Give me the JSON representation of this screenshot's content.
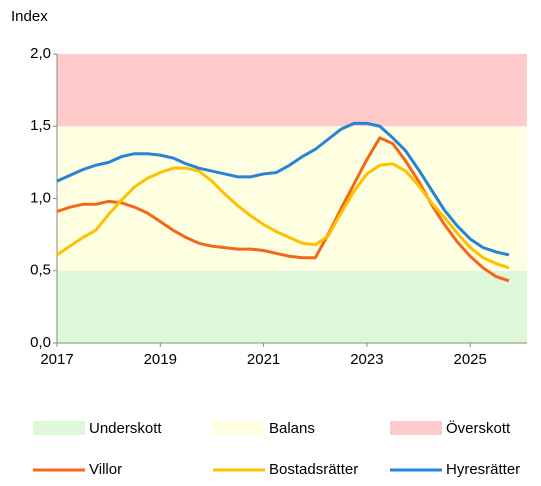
{
  "chart_data": {
    "type": "line",
    "y_label": "Index",
    "x": [
      2017,
      2017.25,
      2017.5,
      2017.75,
      2018,
      2018.25,
      2018.5,
      2018.75,
      2019,
      2019.25,
      2019.5,
      2019.75,
      2020,
      2020.25,
      2020.5,
      2020.75,
      2021,
      2021.25,
      2021.5,
      2021.75,
      2022,
      2022.25,
      2022.5,
      2022.75,
      2023,
      2023.25,
      2023.5,
      2023.75,
      2024,
      2024.25,
      2024.5,
      2024.75,
      2025,
      2025.25,
      2025.5,
      2025.75
    ],
    "series": [
      {
        "name": "Villor",
        "color": "#f4661b",
        "values": [
          0.91,
          0.94,
          0.96,
          0.96,
          0.98,
          0.97,
          0.94,
          0.9,
          0.84,
          0.78,
          0.73,
          0.69,
          0.67,
          0.66,
          0.65,
          0.65,
          0.64,
          0.62,
          0.6,
          0.59,
          0.59,
          0.75,
          0.93,
          1.1,
          1.27,
          1.42,
          1.38,
          1.26,
          1.12,
          0.96,
          0.82,
          0.7,
          0.6,
          0.52,
          0.46,
          0.43
        ]
      },
      {
        "name": "Bostadsrätter",
        "color": "#ffc000",
        "values": [
          0.61,
          0.67,
          0.73,
          0.78,
          0.89,
          0.99,
          1.08,
          1.14,
          1.18,
          1.21,
          1.21,
          1.19,
          1.12,
          1.03,
          0.95,
          0.88,
          0.82,
          0.77,
          0.73,
          0.69,
          0.68,
          0.74,
          0.9,
          1.05,
          1.17,
          1.23,
          1.24,
          1.19,
          1.09,
          0.97,
          0.87,
          0.76,
          0.66,
          0.59,
          0.55,
          0.52
        ]
      },
      {
        "name": "Hyresrätter",
        "color": "#2783d6",
        "values": [
          1.12,
          1.16,
          1.2,
          1.23,
          1.25,
          1.29,
          1.31,
          1.31,
          1.3,
          1.28,
          1.24,
          1.21,
          1.19,
          1.17,
          1.15,
          1.15,
          1.17,
          1.18,
          1.23,
          1.29,
          1.34,
          1.41,
          1.48,
          1.52,
          1.52,
          1.5,
          1.42,
          1.33,
          1.2,
          1.06,
          0.92,
          0.81,
          0.72,
          0.66,
          0.63,
          0.61
        ]
      }
    ],
    "bands": [
      {
        "name": "Underskott",
        "from": 0,
        "to": 0.5,
        "color": "#dff7d9"
      },
      {
        "name": "Balans",
        "from": 0.5,
        "to": 1.5,
        "color": "#fefee0"
      },
      {
        "name": "Överskott",
        "from": 1.5,
        "to": 2.0,
        "color": "#ffcaca"
      }
    ],
    "xlim": [
      2017,
      2026.1
    ],
    "xticks": [
      2017,
      2019,
      2021,
      2023,
      2025
    ],
    "ylim": [
      0,
      2.0
    ],
    "yticks": [
      {
        "value": 0,
        "label": "0,0"
      },
      {
        "value": 0.5,
        "label": "0,5"
      },
      {
        "value": 1.0,
        "label": "1,0"
      },
      {
        "value": 1.5,
        "label": "1,5"
      },
      {
        "value": 2.0,
        "label": "2,0"
      }
    ],
    "legend": "bottom"
  }
}
